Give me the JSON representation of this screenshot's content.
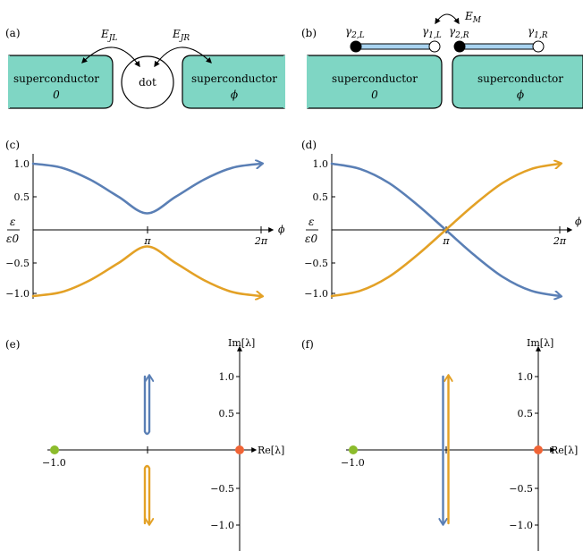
{
  "panel_labels": {
    "a": "(a)",
    "b": "(b)",
    "c": "(c)",
    "d": "(d)",
    "e": "(e)",
    "f": "(f)"
  },
  "colors": {
    "superconductor_fill": "#7fd6c4",
    "wire_fill": "#a9d3f0",
    "blue_curve": "#5a7fb5",
    "orange_curve": "#e3a126",
    "green_point": "#8cbc2c",
    "red_point": "#f06436"
  },
  "panel_a": {
    "left_sc": {
      "line1": "superconductor",
      "line2": "0"
    },
    "right_sc": {
      "line1": "superconductor",
      "line2": "ϕ"
    },
    "dot": "dot",
    "coupling_left": {
      "main": "E",
      "sub": "JL"
    },
    "coupling_right": {
      "main": "E",
      "sub": "JR"
    }
  },
  "panel_b": {
    "left_sc": {
      "line1": "superconductor",
      "line2": "0"
    },
    "right_sc": {
      "line1": "superconductor",
      "line2": "ϕ"
    },
    "majorana_coupling": {
      "main": "E",
      "sub": "M"
    },
    "gamma_labels": [
      {
        "main": "γ",
        "sub": "2,L"
      },
      {
        "main": "γ",
        "sub": "1,L"
      },
      {
        "main": "γ",
        "sub": "2,R"
      },
      {
        "main": "γ",
        "sub": "1,R"
      }
    ]
  },
  "axes_cd": {
    "y_num": "ε",
    "y_den": "ε0",
    "x_label": "ϕ",
    "y_ticks": [
      "1.0",
      "0.5",
      "−0.5",
      "−1.0"
    ],
    "x_ticks": [
      "π",
      "2π"
    ]
  },
  "axes_ef": {
    "y_label": "Im[λ]",
    "x_label": "Re[λ]",
    "y_ticks": [
      "1.0",
      "0.5",
      "−0.5",
      "−1.0"
    ],
    "x_tick": "−1.0"
  },
  "chart_data": [
    {
      "panel": "(c)",
      "type": "line",
      "xlabel": "ϕ",
      "ylabel": "ε/ε0",
      "xlim": [
        0,
        6.2832
      ],
      "ylim": [
        -1.1,
        1.1
      ],
      "series": [
        {
          "color": "#5a7fb5",
          "x": [
            0,
            0.785,
            1.571,
            2.356,
            3.1416,
            3.927,
            4.712,
            5.498,
            6.2832
          ],
          "y": [
            1.0,
            0.94,
            0.76,
            0.5,
            0.25,
            0.5,
            0.76,
            0.94,
            1.0
          ]
        },
        {
          "color": "#e3a126",
          "x": [
            0,
            0.785,
            1.571,
            2.356,
            3.1416,
            3.927,
            4.712,
            5.498,
            6.2832
          ],
          "y": [
            -1.0,
            -0.94,
            -0.76,
            -0.5,
            -0.25,
            -0.5,
            -0.76,
            -0.94,
            -1.0
          ]
        }
      ]
    },
    {
      "panel": "(d)",
      "type": "line",
      "xlabel": "ϕ",
      "ylabel": "ε/ε0",
      "xlim": [
        0,
        6.2832
      ],
      "ylim": [
        -1.1,
        1.1
      ],
      "series": [
        {
          "color": "#5a7fb5",
          "x": [
            0,
            0.785,
            1.571,
            2.356,
            3.1416,
            3.927,
            4.712,
            5.498,
            6.2832
          ],
          "y": [
            1.0,
            0.92,
            0.71,
            0.38,
            0.0,
            -0.38,
            -0.71,
            -0.92,
            -1.0
          ]
        },
        {
          "color": "#e3a126",
          "x": [
            0,
            0.785,
            1.571,
            2.356,
            3.1416,
            3.927,
            4.712,
            5.498,
            6.2832
          ],
          "y": [
            -1.0,
            -0.92,
            -0.71,
            -0.38,
            0.0,
            0.38,
            0.71,
            0.92,
            1.0
          ]
        }
      ]
    },
    {
      "panel": "(e)",
      "type": "scatter",
      "xlabel": "Re[λ]",
      "ylabel": "Im[λ]",
      "points": [
        {
          "x": -1.0,
          "y": 0.0,
          "color": "#8cbc2c"
        },
        {
          "x": 0.0,
          "y": 0.0,
          "color": "#f06436"
        }
      ],
      "paths": [
        {
          "color": "#5a7fb5",
          "re": -0.5,
          "im_range": [
            0.25,
            1.0
          ]
        },
        {
          "color": "#e3a126",
          "re": -0.5,
          "im_range": [
            -0.25,
            -1.0
          ]
        }
      ]
    },
    {
      "panel": "(f)",
      "type": "scatter",
      "xlabel": "Re[λ]",
      "ylabel": "Im[λ]",
      "points": [
        {
          "x": -1.0,
          "y": 0.0,
          "color": "#8cbc2c"
        },
        {
          "x": 0.0,
          "y": 0.0,
          "color": "#f06436"
        }
      ],
      "paths": [
        {
          "color": "#5a7fb5",
          "re": -0.5,
          "im_range": [
            1.0,
            -1.0
          ]
        },
        {
          "color": "#e3a126",
          "re": -0.5,
          "im_range": [
            -1.0,
            1.0
          ]
        }
      ]
    }
  ]
}
